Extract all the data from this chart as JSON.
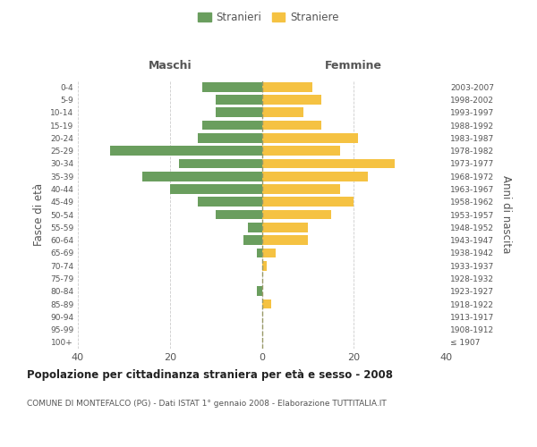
{
  "age_groups": [
    "100+",
    "95-99",
    "90-94",
    "85-89",
    "80-84",
    "75-79",
    "70-74",
    "65-69",
    "60-64",
    "55-59",
    "50-54",
    "45-49",
    "40-44",
    "35-39",
    "30-34",
    "25-29",
    "20-24",
    "15-19",
    "10-14",
    "5-9",
    "0-4"
  ],
  "birth_years": [
    "≤ 1907",
    "1908-1912",
    "1913-1917",
    "1918-1922",
    "1923-1927",
    "1928-1932",
    "1933-1937",
    "1938-1942",
    "1943-1947",
    "1948-1952",
    "1953-1957",
    "1958-1962",
    "1963-1967",
    "1968-1972",
    "1973-1977",
    "1978-1982",
    "1983-1987",
    "1988-1992",
    "1993-1997",
    "1998-2002",
    "2003-2007"
  ],
  "males": [
    0,
    0,
    0,
    0,
    1,
    0,
    0,
    1,
    4,
    3,
    10,
    14,
    20,
    26,
    18,
    33,
    14,
    13,
    10,
    10,
    13
  ],
  "females": [
    0,
    0,
    0,
    2,
    0,
    0,
    1,
    3,
    10,
    10,
    15,
    20,
    17,
    23,
    29,
    17,
    21,
    13,
    9,
    13,
    11
  ],
  "male_color": "#6a9e5e",
  "female_color": "#f5c242",
  "bar_height": 0.75,
  "xlim": 40,
  "title": "Popolazione per cittadinanza straniera per età e sesso - 2008",
  "subtitle": "COMUNE DI MONTEFALCO (PG) - Dati ISTAT 1° gennaio 2008 - Elaborazione TUTTITALIA.IT",
  "ylabel_left": "Fasce di età",
  "ylabel_right": "Anni di nascita",
  "legend_males": "Stranieri",
  "legend_females": "Straniere",
  "maschi_label": "Maschi",
  "femmine_label": "Femmine",
  "background_color": "#ffffff",
  "grid_color": "#cccccc",
  "text_color": "#555555",
  "vline_color": "#999966"
}
